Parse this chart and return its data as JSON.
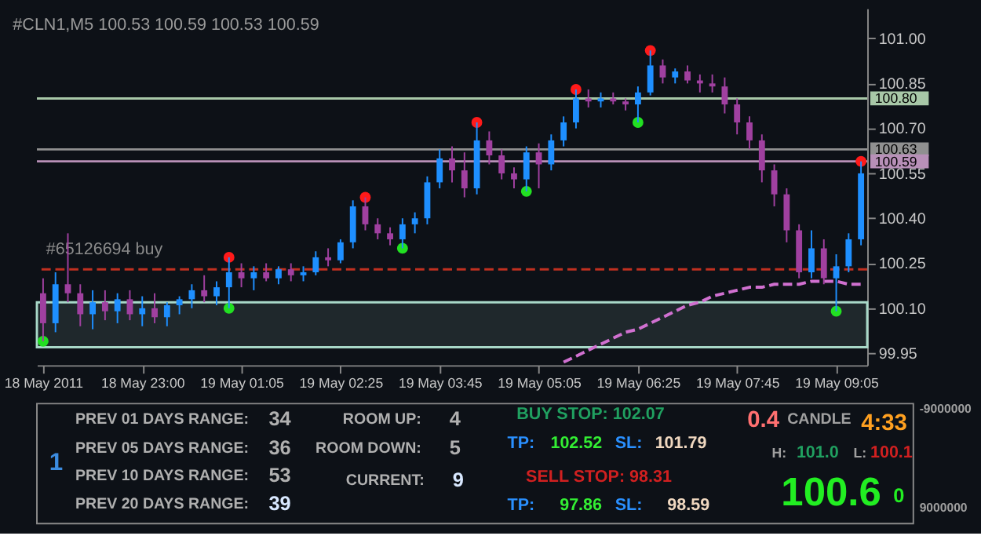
{
  "chart_data": {
    "type": "candlestick",
    "title": "#CLN1,M5  100.53 100.59 100.53 100.59",
    "categories": [
      "18 May 2011",
      null,
      null,
      null,
      null,
      null,
      null,
      null,
      "18 May 23:00",
      null,
      null,
      null,
      null,
      null,
      null,
      null,
      "19 May 01:05",
      null,
      null,
      null,
      null,
      null,
      null,
      null,
      "19 May 02:25",
      null,
      null,
      null,
      null,
      null,
      null,
      null,
      "19 May 03:45",
      null,
      null,
      null,
      null,
      null,
      null,
      null,
      "19 May 05:05",
      null,
      null,
      null,
      null,
      null,
      null,
      null,
      "19 May 06:25",
      null,
      null,
      null,
      null,
      null,
      null,
      null,
      "19 May 07:45",
      null,
      null,
      null,
      null,
      null,
      null,
      null,
      "19 May 09:05",
      null,
      null
    ],
    "ohlc": [
      [
        100.15,
        100.2,
        99.99,
        100.05
      ],
      [
        100.05,
        100.22,
        100.02,
        100.18
      ],
      [
        100.18,
        100.35,
        100.12,
        100.15
      ],
      [
        100.15,
        100.18,
        100.04,
        100.08
      ],
      [
        100.08,
        100.16,
        100.03,
        100.12
      ],
      [
        100.12,
        100.16,
        100.06,
        100.09
      ],
      [
        100.09,
        100.15,
        100.05,
        100.13
      ],
      [
        100.13,
        100.16,
        100.06,
        100.08
      ],
      [
        100.08,
        100.14,
        100.04,
        100.1
      ],
      [
        100.1,
        100.15,
        100.05,
        100.07
      ],
      [
        100.07,
        100.12,
        100.04,
        100.11
      ],
      [
        100.11,
        100.14,
        100.08,
        100.13
      ],
      [
        100.13,
        100.18,
        100.1,
        100.16
      ],
      [
        100.16,
        100.21,
        100.12,
        100.14
      ],
      [
        100.14,
        100.19,
        100.11,
        100.17
      ],
      [
        100.17,
        100.27,
        100.1,
        100.22
      ],
      [
        100.22,
        100.25,
        100.17,
        100.2
      ],
      [
        100.2,
        100.24,
        100.16,
        100.22
      ],
      [
        100.22,
        100.25,
        100.19,
        100.2
      ],
      [
        100.2,
        100.24,
        100.18,
        100.23
      ],
      [
        100.23,
        100.25,
        100.19,
        100.21
      ],
      [
        100.21,
        100.24,
        100.19,
        100.22
      ],
      [
        100.22,
        100.29,
        100.21,
        100.27
      ],
      [
        100.27,
        100.3,
        100.24,
        100.26
      ],
      [
        100.26,
        100.33,
        100.25,
        100.32
      ],
      [
        100.32,
        100.46,
        100.3,
        100.44
      ],
      [
        100.44,
        100.47,
        100.36,
        100.38
      ],
      [
        100.38,
        100.4,
        100.33,
        100.35
      ],
      [
        100.35,
        100.37,
        100.31,
        100.33
      ],
      [
        100.33,
        100.4,
        100.3,
        100.38
      ],
      [
        100.38,
        100.42,
        100.35,
        100.4
      ],
      [
        100.4,
        100.54,
        100.38,
        100.52
      ],
      [
        100.52,
        100.63,
        100.5,
        100.6
      ],
      [
        100.6,
        100.64,
        100.52,
        100.56
      ],
      [
        100.56,
        100.62,
        100.47,
        100.5
      ],
      [
        100.5,
        100.72,
        100.48,
        100.66
      ],
      [
        100.66,
        100.69,
        100.58,
        100.61
      ],
      [
        100.61,
        100.63,
        100.53,
        100.55
      ],
      [
        100.55,
        100.57,
        100.5,
        100.53
      ],
      [
        100.53,
        100.64,
        100.49,
        100.62
      ],
      [
        100.62,
        100.65,
        100.5,
        100.58
      ],
      [
        100.58,
        100.68,
        100.56,
        100.66
      ],
      [
        100.66,
        100.74,
        100.64,
        100.72
      ],
      [
        100.72,
        100.83,
        100.7,
        100.8
      ],
      [
        100.8,
        100.83,
        100.77,
        100.79
      ],
      [
        100.79,
        100.82,
        100.77,
        100.8
      ],
      [
        100.8,
        100.82,
        100.78,
        100.79
      ],
      [
        100.79,
        100.8,
        100.76,
        100.78
      ],
      [
        100.78,
        100.84,
        100.72,
        100.82
      ],
      [
        100.82,
        100.96,
        100.81,
        100.91
      ],
      [
        100.91,
        100.93,
        100.85,
        100.87
      ],
      [
        100.87,
        100.9,
        100.85,
        100.89
      ],
      [
        100.89,
        100.91,
        100.85,
        100.86
      ],
      [
        100.86,
        100.88,
        100.82,
        100.85
      ],
      [
        100.85,
        100.88,
        100.82,
        100.84
      ],
      [
        100.84,
        100.87,
        100.75,
        100.78
      ],
      [
        100.78,
        100.8,
        100.68,
        100.72
      ],
      [
        100.72,
        100.74,
        100.63,
        100.66
      ],
      [
        100.66,
        100.68,
        100.52,
        100.56
      ],
      [
        100.56,
        100.58,
        100.44,
        100.48
      ],
      [
        100.48,
        100.5,
        100.32,
        100.36
      ],
      [
        100.36,
        100.38,
        100.2,
        100.22
      ],
      [
        100.22,
        100.36,
        100.2,
        100.3
      ],
      [
        100.3,
        100.33,
        100.18,
        100.2
      ],
      [
        100.2,
        100.28,
        100.09,
        100.24
      ],
      [
        100.24,
        100.35,
        100.22,
        100.33
      ],
      [
        100.33,
        100.59,
        100.31,
        100.55
      ]
    ],
    "series": [
      {
        "type": "scatter",
        "color": "#ff1a1a",
        "values": [
          null,
          null,
          null,
          null,
          null,
          null,
          null,
          null,
          null,
          null,
          null,
          null,
          null,
          null,
          null,
          100.27,
          null,
          null,
          null,
          null,
          null,
          null,
          null,
          null,
          null,
          null,
          100.47,
          null,
          null,
          null,
          null,
          null,
          null,
          null,
          null,
          100.72,
          null,
          null,
          null,
          null,
          null,
          null,
          null,
          100.83,
          null,
          null,
          null,
          null,
          null,
          100.96,
          null,
          null,
          null,
          null,
          null,
          null,
          null,
          null,
          null,
          null,
          null,
          null,
          null,
          null,
          null,
          null,
          100.59
        ]
      },
      {
        "type": "scatter",
        "color": "#22e022",
        "values": [
          99.99,
          null,
          null,
          null,
          null,
          null,
          null,
          null,
          null,
          null,
          null,
          null,
          null,
          null,
          null,
          100.1,
          null,
          null,
          null,
          null,
          null,
          null,
          null,
          null,
          null,
          null,
          null,
          null,
          null,
          100.3,
          null,
          null,
          null,
          null,
          null,
          null,
          null,
          null,
          null,
          100.49,
          null,
          null,
          null,
          null,
          null,
          null,
          null,
          null,
          100.72,
          null,
          null,
          null,
          null,
          null,
          null,
          null,
          null,
          null,
          null,
          null,
          null,
          null,
          null,
          null,
          100.09,
          null,
          null
        ]
      },
      {
        "type": "line",
        "color": "#d070d0",
        "line_style": "dashed",
        "values": [
          null,
          null,
          null,
          null,
          null,
          null,
          null,
          null,
          null,
          null,
          null,
          null,
          null,
          null,
          null,
          null,
          null,
          null,
          null,
          null,
          null,
          null,
          null,
          null,
          null,
          null,
          null,
          null,
          null,
          null,
          null,
          null,
          null,
          null,
          null,
          null,
          null,
          null,
          null,
          null,
          null,
          null,
          99.92,
          99.94,
          99.96,
          99.98,
          100.0,
          100.02,
          100.03,
          100.05,
          100.07,
          100.09,
          100.11,
          100.12,
          100.14,
          100.15,
          100.16,
          100.17,
          100.17,
          100.18,
          100.18,
          100.18,
          100.19,
          100.19,
          100.19,
          100.18,
          100.18
        ]
      }
    ],
    "ylim": [
      99.91,
      101.1
    ],
    "yticks": [
      {
        "value": 99.95,
        "label": "99.95"
      },
      {
        "value": 100.1,
        "label": "100.10"
      },
      {
        "value": 100.25,
        "label": "100.25"
      },
      {
        "value": 100.4,
        "label": "100.40"
      },
      {
        "value": 100.55,
        "label": "100.55"
      },
      {
        "value": 100.7,
        "label": "100.70"
      },
      {
        "value": 100.85,
        "label": "100.85"
      },
      {
        "value": 101.0,
        "label": "101.00"
      }
    ],
    "ref_lines": [
      {
        "axis": "y",
        "value": 100.8,
        "label": "100.80",
        "color": "#a8c8a8"
      },
      {
        "axis": "y",
        "value": 100.63,
        "label": "100.63",
        "color": "#909090"
      },
      {
        "axis": "y",
        "value": 100.59,
        "label": "100.59",
        "color": "#b890b8"
      },
      {
        "axis": "y",
        "value": 100.23,
        "label": "#65126694 buy",
        "color": "#c03020",
        "line_style": "dashed"
      }
    ],
    "bands": [
      {
        "axis": "y",
        "from": 99.97,
        "to": 100.12,
        "color": "#a8d8c8"
      }
    ],
    "annotations": [
      "1",
      "PREV 01 DAYS RANGE:",
      "PREV 05 DAYS RANGE:",
      "PREV 10 DAYS RANGE:",
      "PREV 20 DAYS RANGE:",
      "34",
      "36",
      "53",
      "39",
      "ROOM UP:",
      "ROOM DOWN:",
      "CURRENT:",
      "4",
      "5",
      "9",
      "BUY STOP: 102.07",
      "TP:",
      "102.52",
      "SL:",
      "101.79",
      "SELL STOP: 98.31",
      "TP:",
      "97.86",
      "SL:",
      "98.59",
      "0.4",
      "CANDLE",
      "4:33",
      "H:",
      "101.0",
      "L:",
      "100.1",
      "100.6",
      "0",
      "-9000000",
      "9000000"
    ]
  }
}
